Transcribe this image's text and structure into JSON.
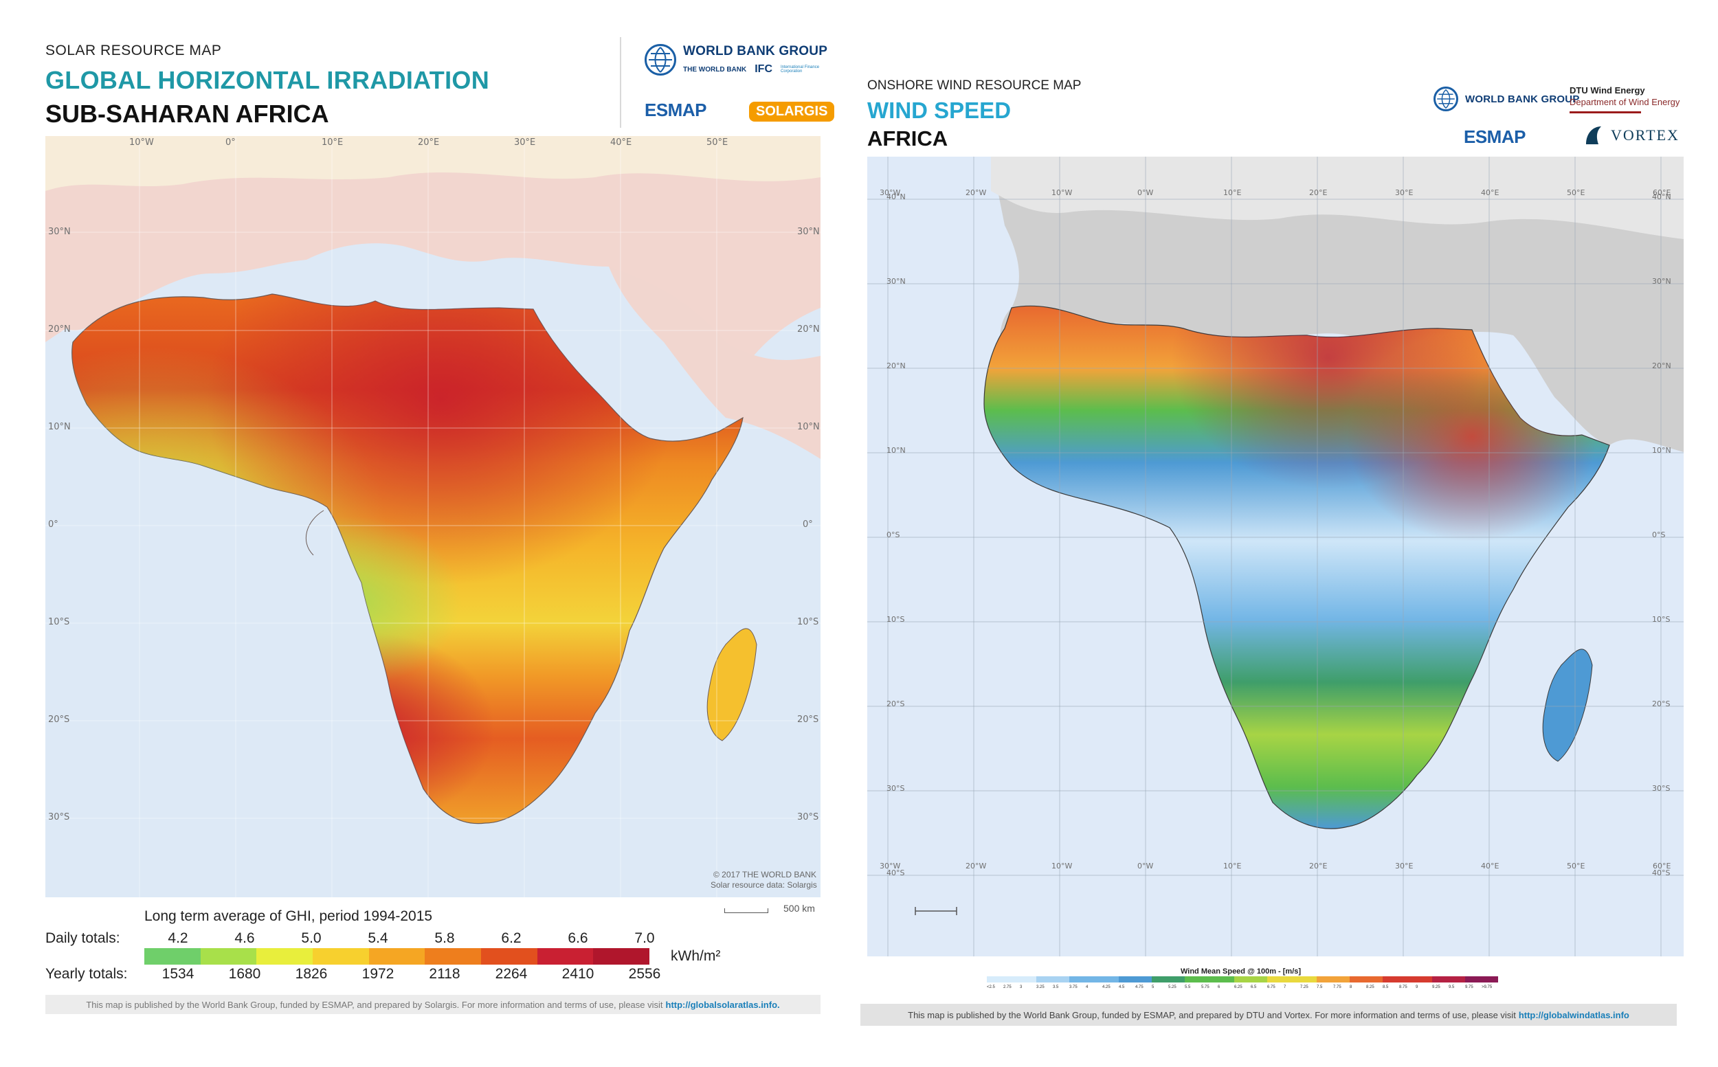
{
  "solar": {
    "eyebrow": "SOLAR RESOURCE MAP",
    "title": "GLOBAL HORIZONTAL IRRADIATION",
    "subtitle": "SUB-SAHARAN AFRICA",
    "logos": {
      "wbg": "WORLD BANK GROUP",
      "wb_sub": "THE WORLD BANK",
      "ifc": "IFC",
      "ifc_sub": "International Finance Corporation",
      "esmap": "ESMAP",
      "solargis": "SOLARGIS"
    },
    "lon_labels": [
      "10°W",
      "0°",
      "10°E",
      "20°E",
      "30°E",
      "40°E",
      "50°E"
    ],
    "lat_labels": [
      "30°N",
      "20°N",
      "10°N",
      "0°",
      "10°S",
      "20°S",
      "30°S"
    ],
    "credits": [
      "© 2017 THE WORLD BANK",
      "Solar resource data: Solargis"
    ],
    "scale_label": "500 km",
    "legend_title": "Long term average of GHI, period 1994-2015",
    "daily_label": "Daily totals:",
    "yearly_label": "Yearly totals:",
    "daily_values": [
      "4.2",
      "4.6",
      "5.0",
      "5.4",
      "5.8",
      "6.2",
      "6.6",
      "7.0"
    ],
    "yearly_values": [
      "1534",
      "1680",
      "1826",
      "1972",
      "2118",
      "2264",
      "2410",
      "2556"
    ],
    "unit": "kWh/m²",
    "footer_text": "This map is published by the World Bank Group, funded by ESMAP, and prepared by Solargis. For more information and terms of use, please visit",
    "footer_link": "http://globalsolaratlas.info."
  },
  "wind": {
    "eyebrow": "ONSHORE WIND RESOURCE MAP",
    "title": "WIND SPEED",
    "subtitle": "AFRICA",
    "logos": {
      "wbg": "WORLD BANK GROUP",
      "dtu": "DTU Wind Energy",
      "dtu_sub": "Department of Wind Energy",
      "esmap": "ESMAP",
      "vortex": "VORTEX"
    },
    "lon_top": [
      "30°W",
      "20°W",
      "10°W",
      "0°W",
      "10°E",
      "20°E",
      "30°E",
      "40°E",
      "50°E",
      "60°E"
    ],
    "lon_bottom": [
      "30°W",
      "20°W",
      "10°W",
      "0°W",
      "10°E",
      "20°E",
      "30°E",
      "40°E",
      "50°E",
      "60°E"
    ],
    "lat_left": [
      "40°N",
      "30°N",
      "20°N",
      "10°N",
      "0°S",
      "10°S",
      "20°S",
      "30°S",
      "40°S"
    ],
    "lat_right": [
      "40°N",
      "30°N",
      "20°N",
      "10°N",
      "0°S",
      "10°S",
      "20°S",
      "30°S",
      "40°S"
    ],
    "legend_title": "Wind Mean Speed @ 100m - [m/s]",
    "legend_ticks": [
      "<2.5",
      "2.75",
      "3",
      "3.25",
      "3.5",
      "3.75",
      "4",
      "4.25",
      "4.5",
      "4.75",
      "5",
      "5.25",
      "5.5",
      "5.75",
      "6",
      "6.25",
      "6.5",
      "6.75",
      "7",
      "7.25",
      "7.5",
      "7.75",
      "8",
      "8.25",
      "8.5",
      "8.75",
      "9",
      "9.25",
      "9.5",
      "9.75",
      ">9.75"
    ],
    "footer_text": "This map is published by the World Bank Group, funded by ESMAP, and prepared by DTU and Vortex. For more information and terms of use, please visit",
    "footer_link": "http://globalwindatlas.info"
  },
  "colors": {
    "solar_scale": [
      "#6fcf6a",
      "#a8e04a",
      "#e8ee3c",
      "#f7d02e",
      "#f5a623",
      "#ee7e1d",
      "#e2501e",
      "#c92032",
      "#b0162c"
    ],
    "wind_scale": [
      "#d7ecfb",
      "#a9d3f2",
      "#73b6e6",
      "#4e9ad4",
      "#3f9e6a",
      "#5cbd4d",
      "#a7d445",
      "#e9d93e",
      "#f2a33a",
      "#e8692f",
      "#d63b2f",
      "#b52143",
      "#8b1a55"
    ],
    "ocean_solar": "#dde9f6",
    "ocean_wind": "#dfeaf8"
  }
}
